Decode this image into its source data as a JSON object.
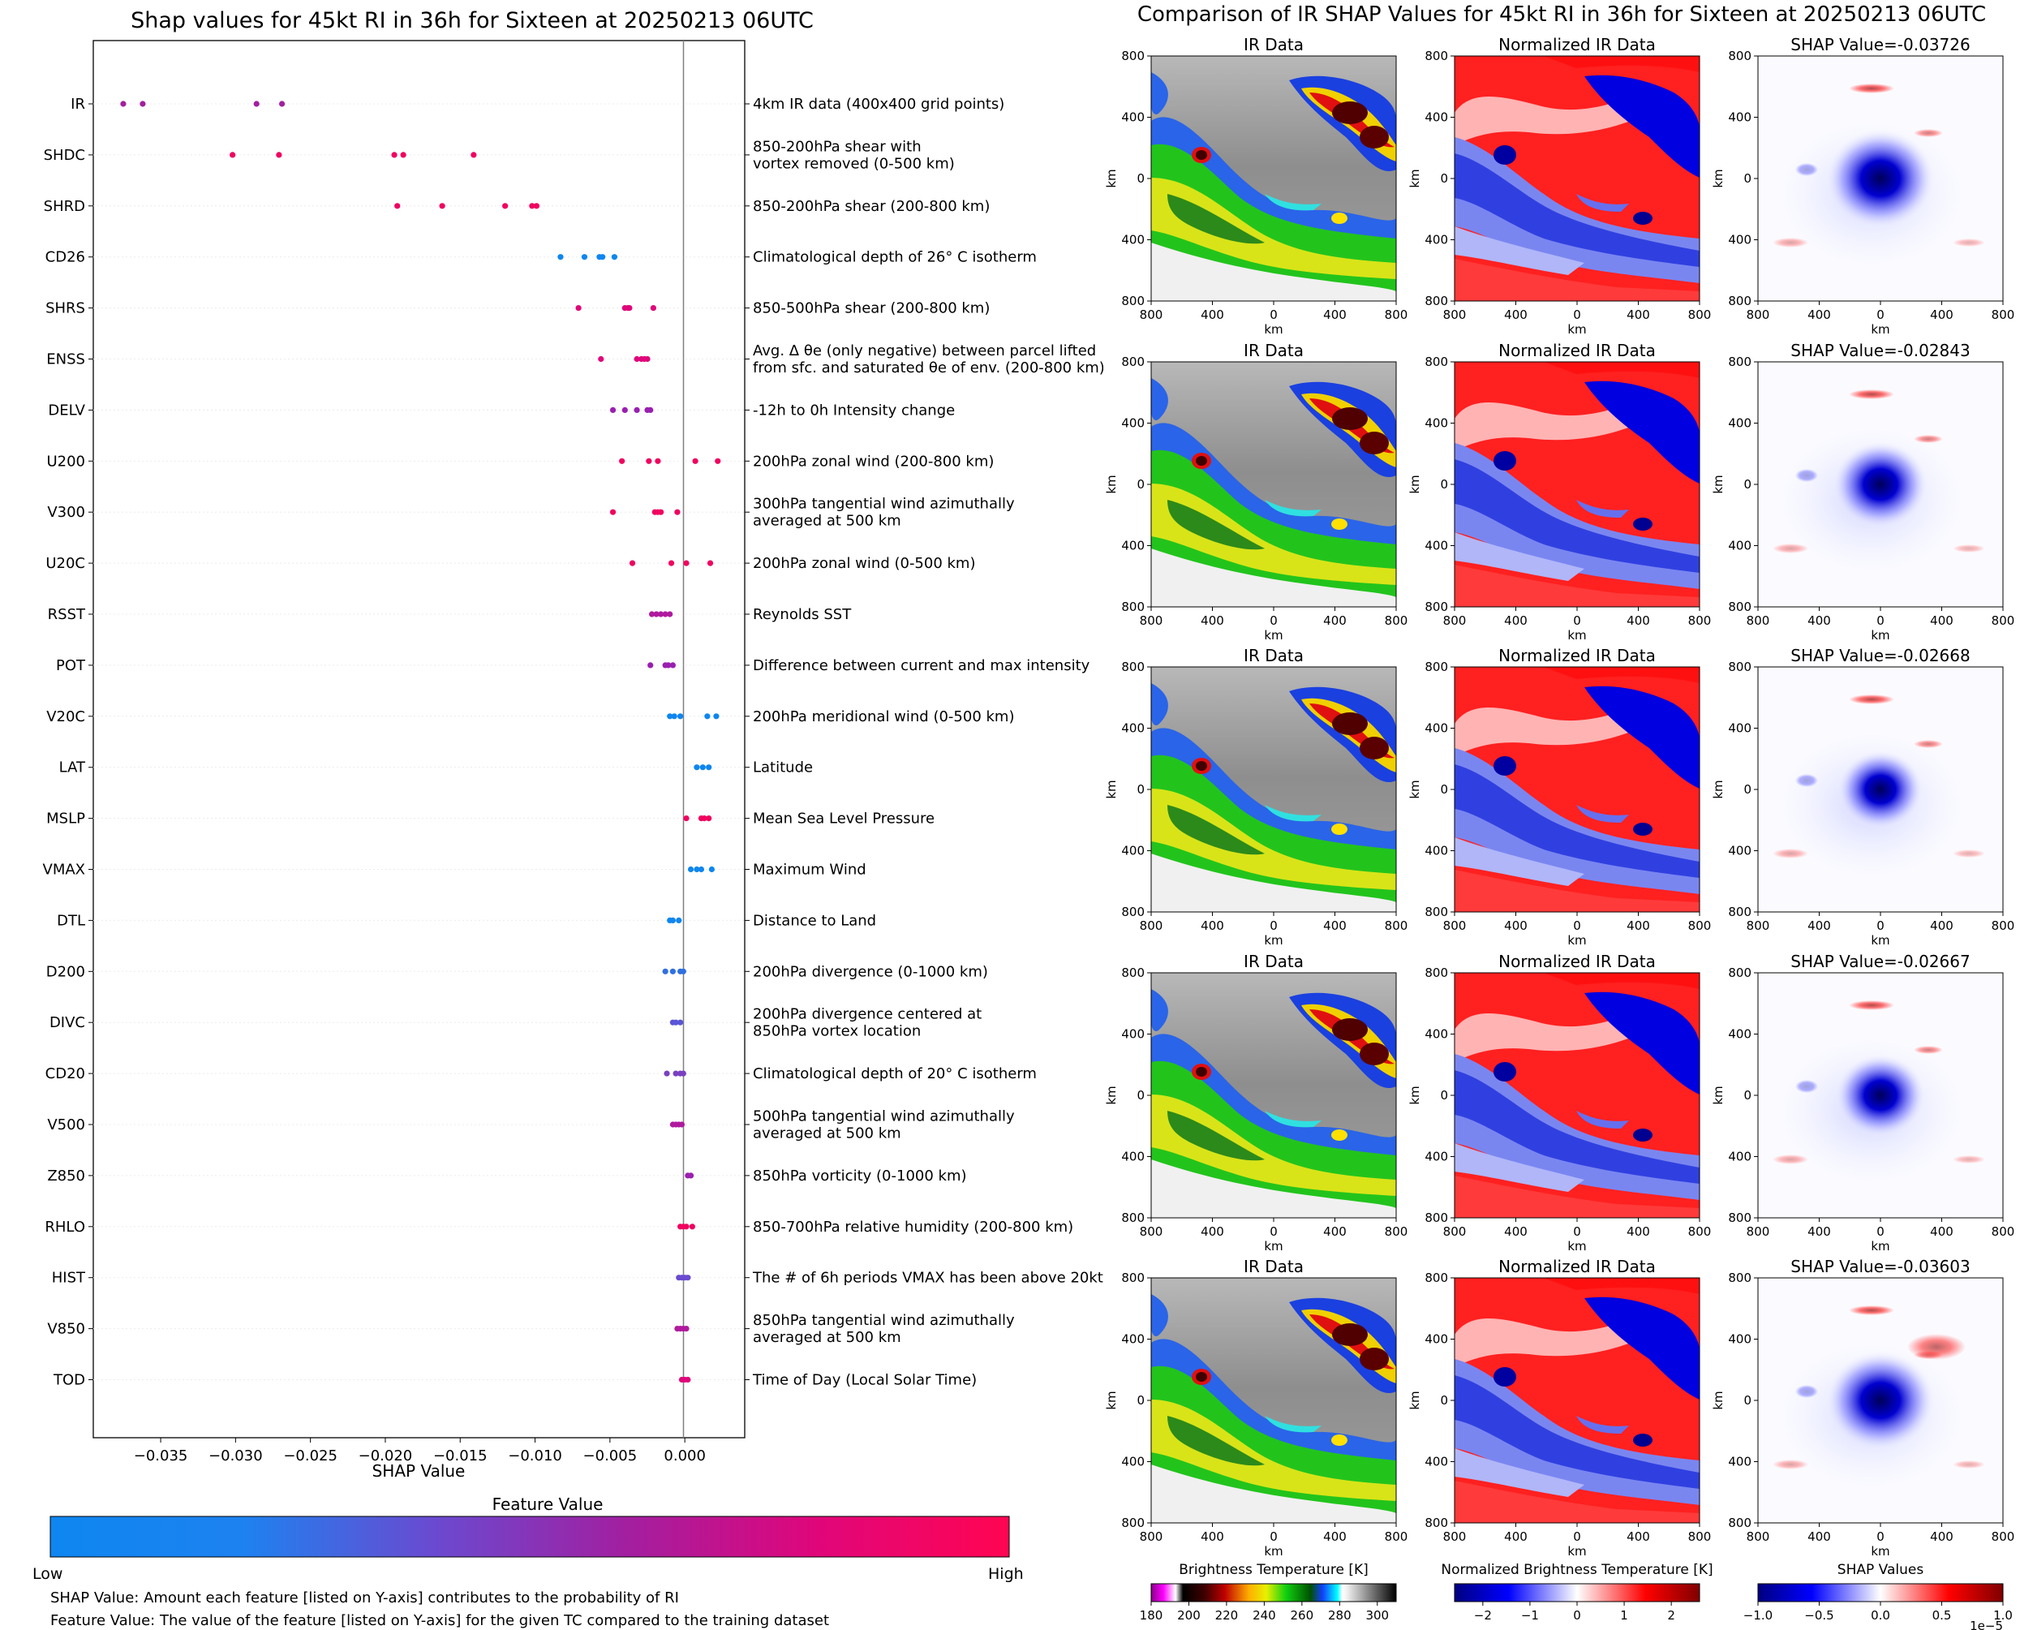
{
  "chart_data": [
    {
      "type": "scatter",
      "title": "Shap values for 45kt RI in 36h for Sixteen at 20250213 06UTC",
      "xlabel": "SHAP Value",
      "xlim": [
        -0.0395,
        0.004
      ],
      "xticks": [
        -0.035,
        -0.03,
        -0.025,
        -0.02,
        -0.015,
        -0.01,
        -0.005,
        0.0
      ],
      "xtick_labels": [
        "−0.035",
        "−0.030",
        "−0.025",
        "−0.020",
        "−0.015",
        "−0.010",
        "−0.005",
        "0.000"
      ],
      "grid": false,
      "features": [
        {
          "name": "IR",
          "desc": [
            "4km IR data (400x400 grid points)"
          ],
          "color": "#a21fa0",
          "values": [
            -0.0375,
            -0.0362,
            -0.0286,
            -0.0269
          ]
        },
        {
          "name": "SHDC",
          "desc": [
            "850-200hPa shear with",
            "vortex removed (0-500 km)"
          ],
          "color": "#f0025f",
          "values": [
            -0.0302,
            -0.0271,
            -0.0194,
            -0.0188,
            -0.0141
          ]
        },
        {
          "name": "SHRD",
          "desc": [
            "850-200hPa shear (200-800 km)"
          ],
          "color": "#f0025f",
          "values": [
            -0.0192,
            -0.0162,
            -0.012,
            -0.0102,
            -0.0099
          ]
        },
        {
          "name": "CD26",
          "desc": [
            "Climatological depth of 26° C isotherm"
          ],
          "color": "#0e86f0",
          "values": [
            -0.0083,
            -0.0067,
            -0.0057,
            -0.0055,
            -0.0047
          ]
        },
        {
          "name": "SHRS",
          "desc": [
            "850-500hPa shear (200-800 km)"
          ],
          "color": "#e0067a",
          "values": [
            -0.0071,
            -0.004,
            -0.0038,
            -0.0037,
            -0.0021
          ]
        },
        {
          "name": "ENSS",
          "desc": [
            "Avg. Δ θe (only negative) between parcel lifted",
            "from sfc. and saturated θe of env. (200-800 km)"
          ],
          "color": "#e0067a",
          "values": [
            -0.0056,
            -0.0032,
            -0.0029,
            -0.0027,
            -0.0025
          ]
        },
        {
          "name": "DELV",
          "desc": [
            "-12h to 0h Intensity change"
          ],
          "color": "#9a20b0",
          "values": [
            -0.0048,
            -0.004,
            -0.0032,
            -0.0025,
            -0.0023
          ]
        },
        {
          "name": "U200",
          "desc": [
            "200hPa zonal wind (200-800 km)"
          ],
          "color": "#f0025f",
          "values": [
            -0.0042,
            -0.0024,
            -0.0018,
            0.0007,
            0.0022
          ]
        },
        {
          "name": "V300",
          "desc": [
            "300hPa tangential wind azimuthally",
            "averaged at 500 km"
          ],
          "color": "#f0025f",
          "values": [
            -0.0048,
            -0.002,
            -0.0018,
            -0.0016,
            -0.0005
          ]
        },
        {
          "name": "U20C",
          "desc": [
            "200hPa zonal wind (0-500 km)"
          ],
          "color": "#f0025f",
          "values": [
            -0.0035,
            -0.0009,
            0.0001,
            0.0017
          ]
        },
        {
          "name": "RSST",
          "desc": [
            "Reynolds SST"
          ],
          "color": "#b01a9e",
          "values": [
            -0.0022,
            -0.0019,
            -0.0016,
            -0.0013,
            -0.001
          ]
        },
        {
          "name": "POT",
          "desc": [
            "Difference between current and max intensity"
          ],
          "color": "#9a20b0",
          "values": [
            -0.0023,
            -0.0013,
            -0.0011,
            -0.0008
          ]
        },
        {
          "name": "V20C",
          "desc": [
            "200hPa meridional wind (0-500 km)"
          ],
          "color": "#0e86f0",
          "values": [
            -0.001,
            -0.0007,
            -0.0003,
            0.0015,
            0.0021
          ]
        },
        {
          "name": "LAT",
          "desc": [
            "Latitude"
          ],
          "color": "#0e86f0",
          "values": [
            0.0008,
            0.0012,
            0.0016
          ]
        },
        {
          "name": "MSLP",
          "desc": [
            "Mean Sea Level Pressure"
          ],
          "color": "#f0025f",
          "values": [
            0.0001,
            0.0011,
            0.0013,
            0.0016
          ]
        },
        {
          "name": "VMAX",
          "desc": [
            "Maximum Wind"
          ],
          "color": "#0e86f0",
          "values": [
            0.0004,
            0.0008,
            0.0011,
            0.0018
          ]
        },
        {
          "name": "DTL",
          "desc": [
            "Distance to Land"
          ],
          "color": "#0e86f0",
          "values": [
            -0.001,
            -0.0008,
            -0.0004
          ]
        },
        {
          "name": "D200",
          "desc": [
            "200hPa divergence (0-1000 km)"
          ],
          "color": "#2f6fe0",
          "values": [
            -0.0013,
            -0.0008,
            -0.0003,
            -0.0001
          ]
        },
        {
          "name": "DIVC",
          "desc": [
            "200hPa divergence centered at",
            "850hPa vortex location"
          ],
          "color": "#5a55d8",
          "values": [
            -0.0008,
            -0.0006,
            -0.0003
          ]
        },
        {
          "name": "CD20",
          "desc": [
            "Climatological depth of 20° C isotherm"
          ],
          "color": "#7a40c0",
          "values": [
            -0.0012,
            -0.0006,
            -0.0003,
            -0.0001
          ]
        },
        {
          "name": "V500",
          "desc": [
            "500hPa tangential wind azimuthally",
            "averaged at 500 km"
          ],
          "color": "#b01a9e",
          "values": [
            -0.0008,
            -0.0006,
            -0.0004,
            -0.0002
          ]
        },
        {
          "name": "Z850",
          "desc": [
            "850hPa vorticity (0-1000 km)"
          ],
          "color": "#9a20b0",
          "values": [
            0.0002,
            0.0004
          ]
        },
        {
          "name": "RHLO",
          "desc": [
            "850-700hPa relative humidity (200-800 km)"
          ],
          "color": "#f0025f",
          "values": [
            -0.0003,
            -0.0001,
            0.0001,
            0.0005
          ]
        },
        {
          "name": "HIST",
          "desc": [
            "The # of 6h periods VMAX has been above 20kt"
          ],
          "color": "#6a4ad0",
          "values": [
            -0.0004,
            -0.0002,
            0.0,
            0.0002
          ]
        },
        {
          "name": "V850",
          "desc": [
            "850hPa tangential wind azimuthally",
            "averaged at 500 km"
          ],
          "color": "#b01a9e",
          "values": [
            -0.0005,
            -0.0003,
            -0.0001,
            0.0001
          ]
        },
        {
          "name": "TOD",
          "desc": [
            "Time of Day (Local Solar Time)"
          ],
          "color": "#e0067a",
          "values": [
            -0.0002,
            0.0,
            0.0002
          ]
        }
      ],
      "colorbar": {
        "title": "Feature Value",
        "low": "Low",
        "high": "High",
        "colors": [
          "#0e86f0",
          "#6a4ad0",
          "#a21fa0",
          "#e0067a",
          "#ff0552"
        ]
      },
      "notes": [
        "SHAP Value: Amount each feature [listed on Y-axis] contributes to the probability of RI",
        "Feature Value: The value of the feature [listed on Y-axis] for the given TC compared to the training dataset"
      ]
    },
    {
      "type": "heatmap",
      "title": "Comparison of IR SHAP Values for 45kt RI in 36h for Sixteen at 20250213 06UTC",
      "column_titles": [
        "IR Data",
        "Normalized IR Data"
      ],
      "shap_titles": [
        "SHAP Value=-0.03726",
        "SHAP Value=-0.02843",
        "SHAP Value=-0.02668",
        "SHAP Value=-0.02667",
        "SHAP Value=-0.03603"
      ],
      "axis_label": "km",
      "tick_labels": [
        "800",
        "400",
        "0",
        "400",
        "800"
      ],
      "shap_intensity": [
        1.0,
        0.85,
        0.75,
        0.8,
        1.0
      ],
      "colorbars": [
        {
          "title": "Brightness Temperature [K]",
          "ticks": [
            "180",
            "200",
            "220",
            "240",
            "260",
            "280",
            "300"
          ]
        },
        {
          "title": "Normalized Brightness Temperature [K]",
          "ticks": [
            "−2",
            "−1",
            "0",
            "1",
            "2"
          ]
        },
        {
          "title": "SHAP Values",
          "ticks": [
            "−1.0",
            "−0.5",
            "0.0",
            "0.5",
            "1.0"
          ],
          "exponent": "1e−5"
        }
      ]
    }
  ]
}
